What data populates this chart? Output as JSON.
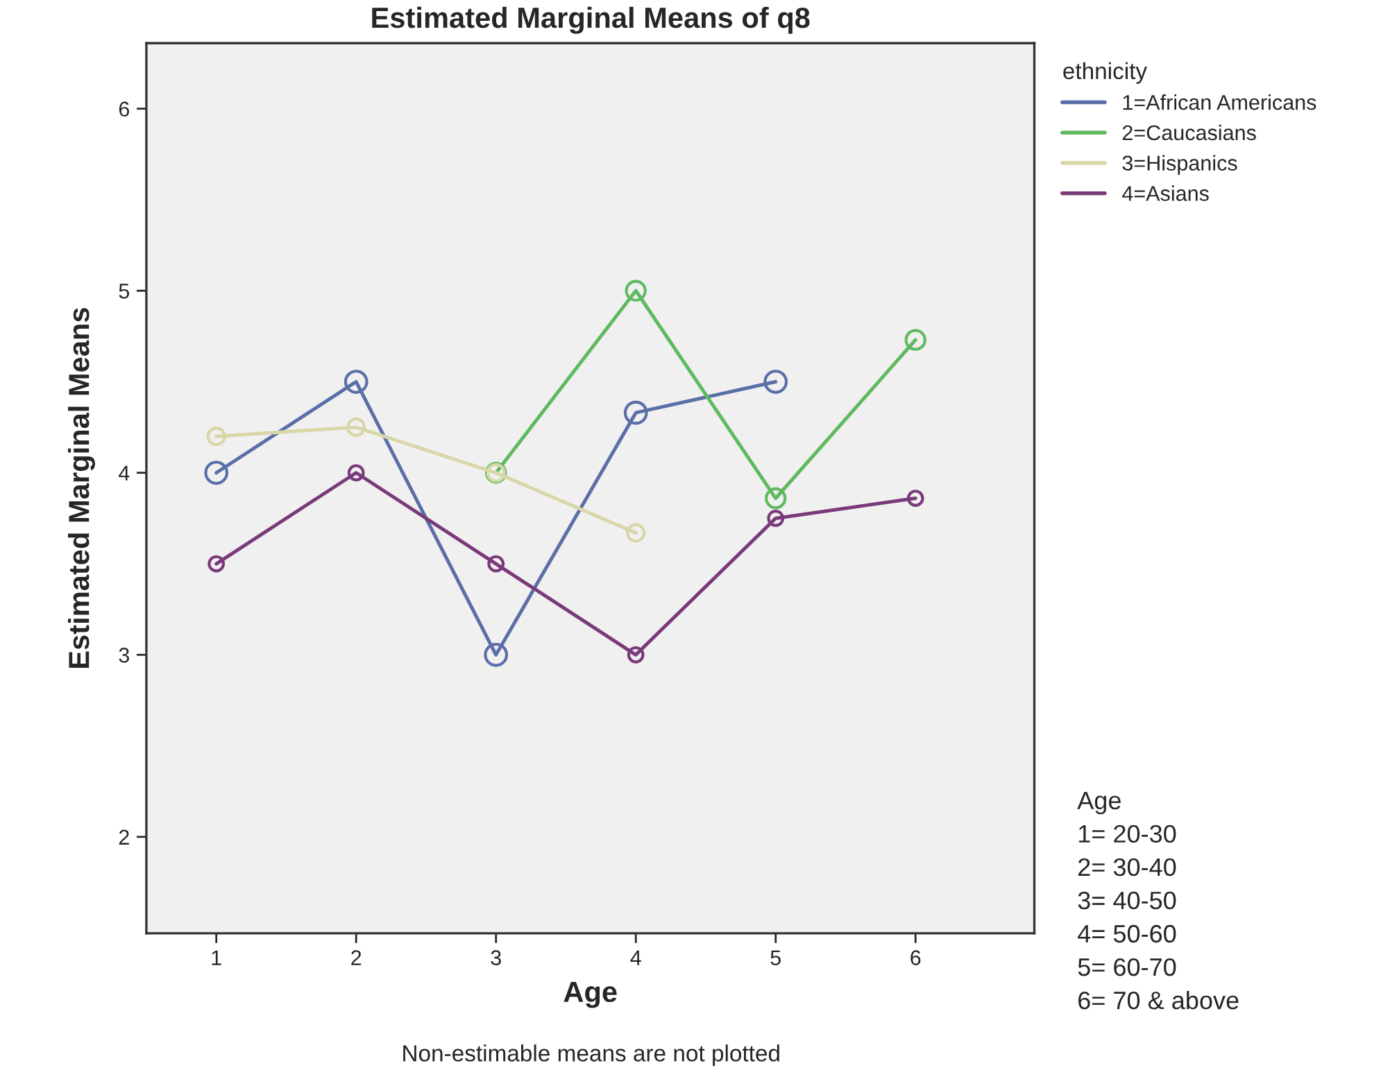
{
  "chart_data": {
    "type": "line",
    "title": "Estimated Marginal Means of q8",
    "xlabel": "Age",
    "ylabel": "Estimated Marginal Means",
    "legend_title": "ethnicity",
    "x": [
      1,
      2,
      3,
      4,
      5,
      6
    ],
    "series": [
      {
        "name": "1=African Americans",
        "color": "#5a6ea8",
        "values": [
          4.0,
          4.5,
          3.0,
          4.33,
          4.5,
          null
        ]
      },
      {
        "name": "2=Caucasians",
        "color": "#5fba5f",
        "values": [
          null,
          null,
          4.0,
          5.0,
          3.86,
          4.73
        ]
      },
      {
        "name": "3=Hispanics",
        "color": "#d9d6a8",
        "values": [
          4.2,
          4.25,
          4.0,
          3.67,
          null,
          null
        ]
      },
      {
        "name": "4=Asians",
        "color": "#7a3a7a",
        "values": [
          3.5,
          4.0,
          3.5,
          3.0,
          3.75,
          3.86
        ]
      }
    ],
    "xlim": [
      0.5,
      6.85
    ],
    "xticks": [
      1,
      2,
      3,
      4,
      5,
      6
    ],
    "ylim": [
      1.47,
      6.36
    ],
    "yticks": [
      2,
      3,
      4,
      5,
      6
    ],
    "marker": "circle",
    "line_style": "solid",
    "grid": false,
    "legend": "top right",
    "annotations": [
      "Age\n1= 20-30\n2= 30-40\n3= 40-50\n4= 50-60\n5= 60-70\n6= 70 & above",
      "Non-estimable means are not plotted"
    ]
  }
}
